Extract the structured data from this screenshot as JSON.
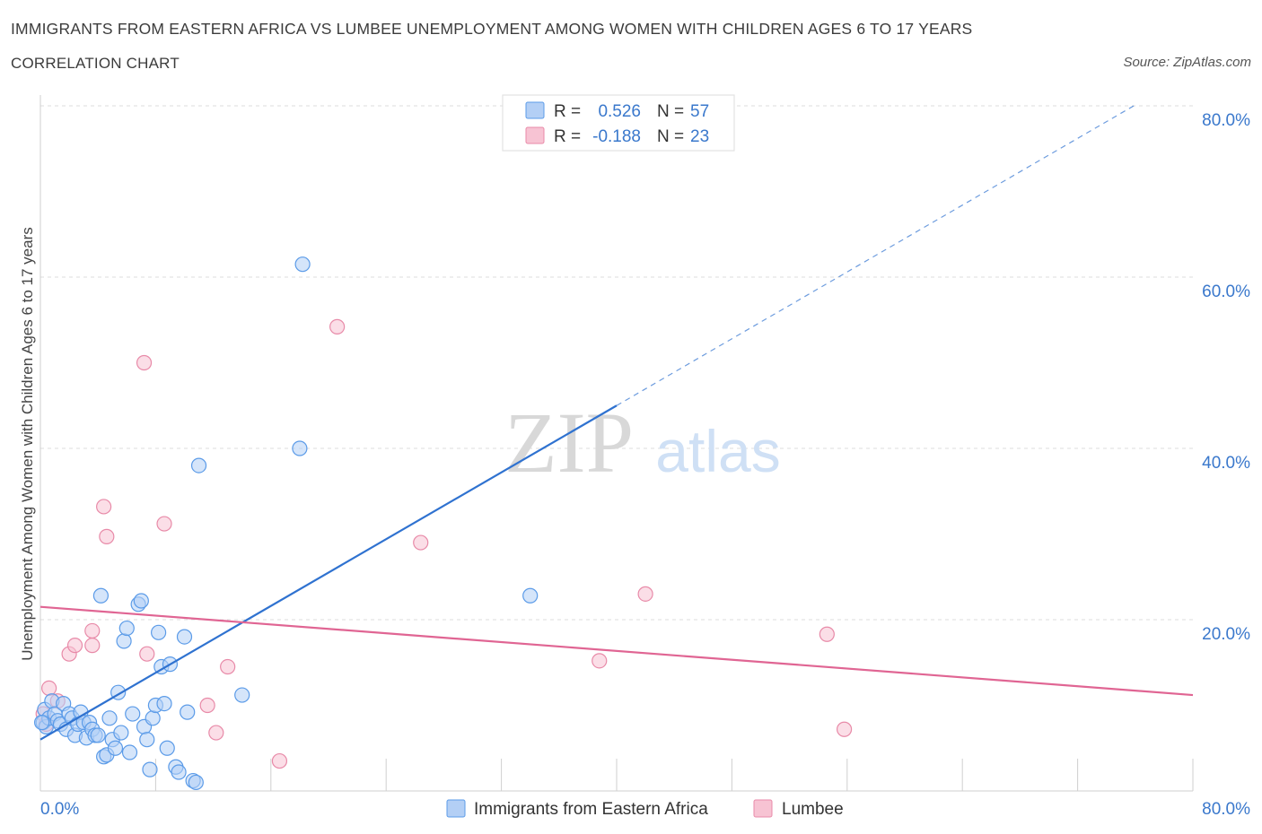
{
  "header": {
    "title": "IMMIGRANTS FROM EASTERN AFRICA VS LUMBEE UNEMPLOYMENT AMONG WOMEN WITH CHILDREN AGES 6 TO 17 YEARS",
    "subtitle": "CORRELATION CHART",
    "source": "Source: ZipAtlas.com"
  },
  "watermark": {
    "zip": "ZIP",
    "atlas": "atlas"
  },
  "colors": {
    "blue": "#5b9be8",
    "blue_fill": "#b3cff5",
    "blue_line": "#2f72d0",
    "pink": "#e88aa8",
    "pink_fill": "#f7c3d3",
    "pink_line": "#e06593",
    "axis_text": "#3a78cc",
    "grid": "#dcdcdc"
  },
  "chart_data": {
    "type": "scatter",
    "title": "IMMIGRANTS FROM EASTERN AFRICA VS LUMBEE UNEMPLOYMENT AMONG WOMEN WITH CHILDREN AGES 6 TO 17 YEARS",
    "xlabel": "",
    "ylabel": "Unemployment Among Women with Children Ages 6 to 17 years",
    "xlim": [
      0,
      80
    ],
    "ylim": [
      0,
      80
    ],
    "x_tick_labels": [
      "0.0%",
      "80.0%"
    ],
    "y_tick_values": [
      20,
      40,
      60,
      80
    ],
    "y_tick_labels": [
      "20.0%",
      "40.0%",
      "60.0%",
      "80.0%"
    ],
    "grid": true,
    "legend_position": "bottom",
    "stats": [
      {
        "r_label": "R =",
        "r_value": "0.526",
        "n_label": "N =",
        "n_value": "57"
      },
      {
        "r_label": "R =",
        "r_value": "-0.188",
        "n_label": "N =",
        "n_value": "23"
      }
    ],
    "series": [
      {
        "name": "Immigrants from Eastern Africa",
        "color": "#5b9be8",
        "trend": {
          "x0": 0,
          "y0": 6.0,
          "x1": 40,
          "y1": 45.0,
          "extend_to_x": 80,
          "extend_to_y": 84.0
        },
        "points": [
          [
            0.2,
            8.0
          ],
          [
            0.3,
            9.5
          ],
          [
            0.4,
            7.5
          ],
          [
            0.6,
            8.5
          ],
          [
            0.8,
            10.5
          ],
          [
            1.0,
            9.0
          ],
          [
            1.2,
            8.2
          ],
          [
            1.4,
            7.8
          ],
          [
            1.6,
            10.2
          ],
          [
            1.8,
            7.2
          ],
          [
            2.0,
            9.0
          ],
          [
            2.2,
            8.5
          ],
          [
            2.4,
            6.5
          ],
          [
            2.6,
            7.8
          ],
          [
            2.8,
            9.2
          ],
          [
            3.0,
            8.0
          ],
          [
            3.2,
            6.2
          ],
          [
            3.4,
            8.0
          ],
          [
            3.6,
            7.2
          ],
          [
            3.8,
            6.5
          ],
          [
            4.0,
            6.5
          ],
          [
            4.2,
            22.8
          ],
          [
            4.4,
            4.0
          ],
          [
            4.6,
            4.2
          ],
          [
            4.8,
            8.5
          ],
          [
            5.0,
            6.0
          ],
          [
            5.2,
            5.0
          ],
          [
            5.4,
            11.5
          ],
          [
            5.6,
            6.8
          ],
          [
            5.8,
            17.5
          ],
          [
            6.0,
            19.0
          ],
          [
            6.2,
            4.5
          ],
          [
            6.4,
            9.0
          ],
          [
            6.8,
            21.8
          ],
          [
            7.0,
            22.2
          ],
          [
            7.2,
            7.5
          ],
          [
            7.4,
            6.0
          ],
          [
            7.6,
            2.5
          ],
          [
            7.8,
            8.5
          ],
          [
            8.0,
            10.0
          ],
          [
            8.2,
            18.5
          ],
          [
            8.4,
            14.5
          ],
          [
            8.6,
            10.2
          ],
          [
            8.8,
            5.0
          ],
          [
            9.0,
            14.8
          ],
          [
            9.4,
            2.8
          ],
          [
            9.6,
            2.2
          ],
          [
            10.0,
            18.0
          ],
          [
            10.2,
            9.2
          ],
          [
            10.6,
            1.2
          ],
          [
            10.8,
            1.0
          ],
          [
            11.0,
            38.0
          ],
          [
            14.0,
            11.2
          ],
          [
            18.0,
            40.0
          ],
          [
            18.2,
            61.5
          ],
          [
            34.0,
            22.8
          ],
          [
            0.1,
            8.0
          ]
        ]
      },
      {
        "name": "Lumbee",
        "color": "#e88aa8",
        "trend": {
          "x0": 0,
          "y0": 21.5,
          "x1": 80,
          "y1": 11.2
        },
        "points": [
          [
            0.2,
            9.0
          ],
          [
            0.4,
            7.8
          ],
          [
            0.6,
            12.0
          ],
          [
            1.2,
            10.5
          ],
          [
            2.0,
            16.0
          ],
          [
            2.4,
            17.0
          ],
          [
            3.6,
            17.0
          ],
          [
            3.6,
            18.7
          ],
          [
            4.4,
            33.2
          ],
          [
            4.6,
            29.7
          ],
          [
            7.2,
            50.0
          ],
          [
            7.4,
            16.0
          ],
          [
            8.6,
            31.2
          ],
          [
            11.6,
            10.0
          ],
          [
            12.2,
            6.8
          ],
          [
            13.0,
            14.5
          ],
          [
            16.6,
            3.5
          ],
          [
            20.6,
            54.2
          ],
          [
            26.4,
            29.0
          ],
          [
            38.8,
            15.2
          ],
          [
            42.0,
            23.0
          ],
          [
            54.6,
            18.3
          ],
          [
            55.8,
            7.2
          ]
        ]
      }
    ]
  }
}
